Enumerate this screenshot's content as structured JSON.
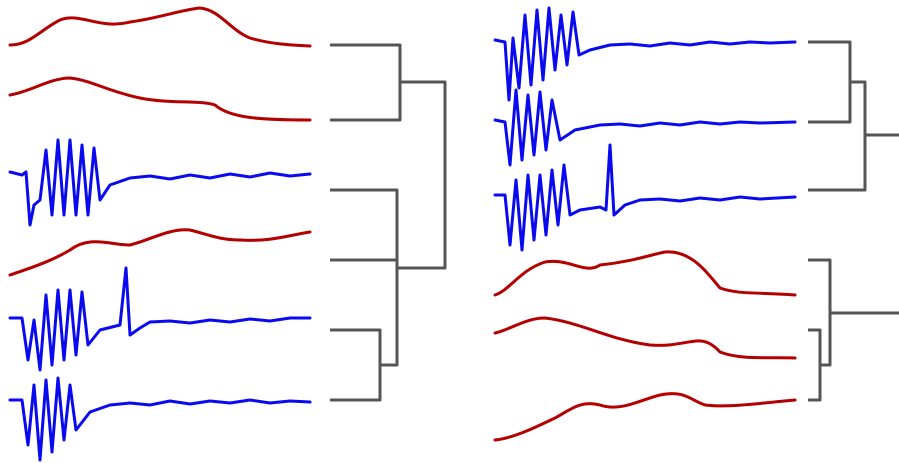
{
  "colors": {
    "slow": "#b30000",
    "spiking": "#0a0aee",
    "tree": "#555555"
  }
}
